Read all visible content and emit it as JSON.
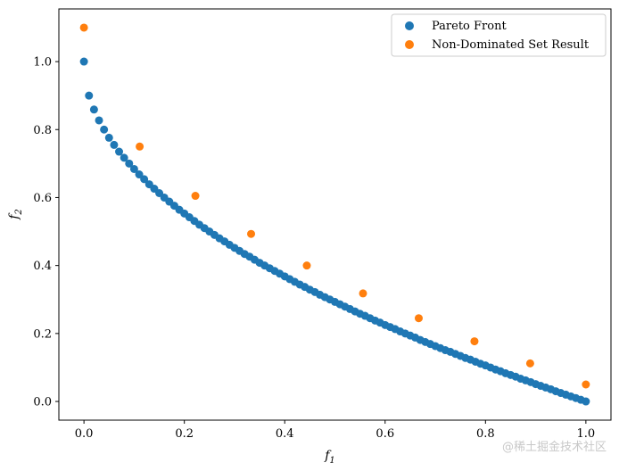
{
  "chart_data": {
    "type": "scatter",
    "xlabel": "f",
    "xlabel_sub": "1",
    "ylabel": "f",
    "ylabel_sub": "2",
    "xlim": [
      -0.05,
      1.05
    ],
    "ylim": [
      -0.055,
      1.155
    ],
    "xticks": [
      0.0,
      0.2,
      0.4,
      0.6,
      0.8,
      1.0
    ],
    "xtick_labels": [
      "0.0",
      "0.2",
      "0.4",
      "0.6",
      "0.8",
      "1.0"
    ],
    "yticks": [
      0.0,
      0.2,
      0.4,
      0.6,
      0.8,
      1.0
    ],
    "ytick_labels": [
      "0.0",
      "0.2",
      "0.4",
      "0.6",
      "0.8",
      "1.0"
    ],
    "grid": false,
    "legend_position": "top-right",
    "series": [
      {
        "name": "Pareto Front",
        "color": "#1f77b4",
        "points": [
          [
            0.0,
            1.0
          ],
          [
            0.01,
            0.9
          ],
          [
            0.02,
            0.859
          ],
          [
            0.03,
            0.827
          ],
          [
            0.04,
            0.8
          ],
          [
            0.05,
            0.776
          ],
          [
            0.06,
            0.755
          ],
          [
            0.07,
            0.735
          ],
          [
            0.08,
            0.717
          ],
          [
            0.09,
            0.7
          ],
          [
            0.1,
            0.684
          ],
          [
            0.11,
            0.668
          ],
          [
            0.12,
            0.654
          ],
          [
            0.13,
            0.639
          ],
          [
            0.14,
            0.626
          ],
          [
            0.15,
            0.613
          ],
          [
            0.16,
            0.6
          ],
          [
            0.17,
            0.588
          ],
          [
            0.18,
            0.576
          ],
          [
            0.19,
            0.564
          ],
          [
            0.2,
            0.553
          ],
          [
            0.21,
            0.542
          ],
          [
            0.22,
            0.531
          ],
          [
            0.23,
            0.52
          ],
          [
            0.24,
            0.51
          ],
          [
            0.25,
            0.5
          ],
          [
            0.26,
            0.49
          ],
          [
            0.27,
            0.48
          ],
          [
            0.28,
            0.471
          ],
          [
            0.29,
            0.461
          ],
          [
            0.3,
            0.452
          ],
          [
            0.31,
            0.443
          ],
          [
            0.32,
            0.434
          ],
          [
            0.33,
            0.426
          ],
          [
            0.34,
            0.417
          ],
          [
            0.35,
            0.408
          ],
          [
            0.36,
            0.4
          ],
          [
            0.37,
            0.392
          ],
          [
            0.38,
            0.384
          ],
          [
            0.39,
            0.376
          ],
          [
            0.4,
            0.368
          ],
          [
            0.41,
            0.36
          ],
          [
            0.42,
            0.352
          ],
          [
            0.43,
            0.344
          ],
          [
            0.44,
            0.337
          ],
          [
            0.45,
            0.329
          ],
          [
            0.46,
            0.322
          ],
          [
            0.47,
            0.314
          ],
          [
            0.48,
            0.307
          ],
          [
            0.49,
            0.3
          ],
          [
            0.5,
            0.293
          ],
          [
            0.51,
            0.286
          ],
          [
            0.52,
            0.279
          ],
          [
            0.53,
            0.272
          ],
          [
            0.54,
            0.265
          ],
          [
            0.55,
            0.258
          ],
          [
            0.56,
            0.252
          ],
          [
            0.57,
            0.245
          ],
          [
            0.58,
            0.238
          ],
          [
            0.59,
            0.232
          ],
          [
            0.6,
            0.225
          ],
          [
            0.61,
            0.219
          ],
          [
            0.62,
            0.213
          ],
          [
            0.63,
            0.206
          ],
          [
            0.64,
            0.2
          ],
          [
            0.65,
            0.194
          ],
          [
            0.66,
            0.188
          ],
          [
            0.67,
            0.181
          ],
          [
            0.68,
            0.175
          ],
          [
            0.69,
            0.169
          ],
          [
            0.7,
            0.163
          ],
          [
            0.71,
            0.157
          ],
          [
            0.72,
            0.151
          ],
          [
            0.73,
            0.146
          ],
          [
            0.74,
            0.14
          ],
          [
            0.75,
            0.134
          ],
          [
            0.76,
            0.128
          ],
          [
            0.77,
            0.123
          ],
          [
            0.78,
            0.117
          ],
          [
            0.79,
            0.111
          ],
          [
            0.8,
            0.106
          ],
          [
            0.81,
            0.1
          ],
          [
            0.82,
            0.094
          ],
          [
            0.83,
            0.089
          ],
          [
            0.84,
            0.083
          ],
          [
            0.85,
            0.078
          ],
          [
            0.86,
            0.073
          ],
          [
            0.87,
            0.067
          ],
          [
            0.88,
            0.062
          ],
          [
            0.89,
            0.057
          ],
          [
            0.9,
            0.051
          ],
          [
            0.91,
            0.046
          ],
          [
            0.92,
            0.041
          ],
          [
            0.93,
            0.036
          ],
          [
            0.94,
            0.03
          ],
          [
            0.95,
            0.025
          ],
          [
            0.96,
            0.02
          ],
          [
            0.97,
            0.015
          ],
          [
            0.98,
            0.01
          ],
          [
            0.99,
            0.005
          ],
          [
            1.0,
            0.0
          ]
        ]
      },
      {
        "name": "Non-Dominated Set Result",
        "color": "#ff7f0e",
        "points": [
          [
            0.0,
            1.1
          ],
          [
            0.111,
            0.75
          ],
          [
            0.222,
            0.605
          ],
          [
            0.333,
            0.493
          ],
          [
            0.444,
            0.4
          ],
          [
            0.556,
            0.318
          ],
          [
            0.667,
            0.245
          ],
          [
            0.778,
            0.177
          ],
          [
            0.889,
            0.112
          ],
          [
            1.0,
            0.05
          ]
        ]
      }
    ]
  },
  "watermark": "@稀土掘金技术社区"
}
